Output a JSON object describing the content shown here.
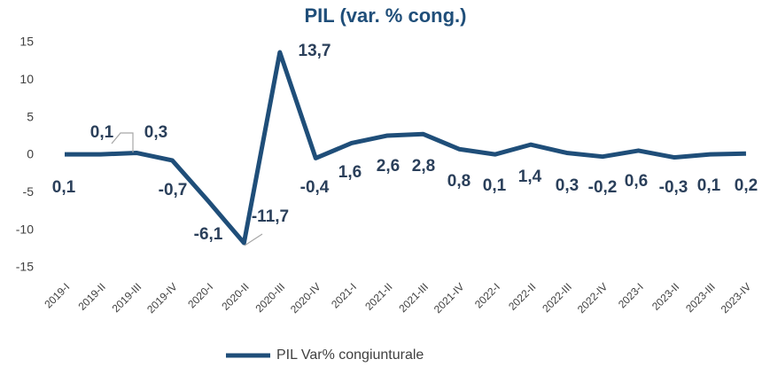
{
  "chart_data": {
    "type": "line",
    "title": "PIL (var. % cong.)",
    "categories": [
      "2019-I",
      "2019-II",
      "2019-III",
      "2019-IV",
      "2020-I",
      "2020-II",
      "2020-III",
      "2020-IV",
      "2021-I",
      "2021-II",
      "2021-III",
      "2021-IV",
      "2022-I",
      "2022-II",
      "2022-III",
      "2022-IV",
      "2023-I",
      "2023-II",
      "2023-III",
      "2023-IV"
    ],
    "series": [
      {
        "name": "PIL Var% congiunturale",
        "color": "#1f4e79",
        "values": [
          0.1,
          0.1,
          0.3,
          -0.7,
          -6.1,
          -11.7,
          13.7,
          -0.4,
          1.6,
          2.6,
          2.8,
          0.8,
          0.1,
          1.4,
          0.3,
          -0.2,
          0.6,
          -0.3,
          0.1,
          0.2
        ],
        "value_labels": [
          "0,1",
          "0,1",
          "0,3",
          "-0,7",
          "-6,1",
          "-11,7",
          "13,7",
          "-0,4",
          "1,6",
          "2,6",
          "2,8",
          "0,8",
          "0,1",
          "1,4",
          "0,3",
          "-0,2",
          "0,6",
          "-0,3",
          "0,1",
          "0,2"
        ]
      }
    ],
    "ylim": [
      -15,
      15
    ],
    "yticks": [
      -15,
      -10,
      -5,
      0,
      5,
      10,
      15
    ]
  }
}
